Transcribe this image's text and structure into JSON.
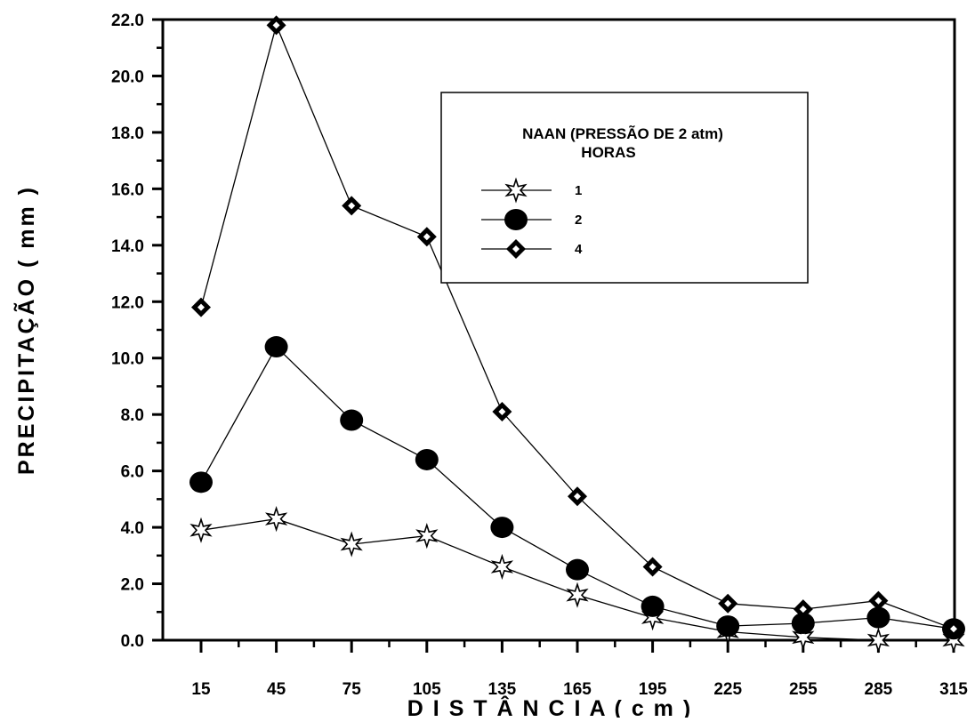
{
  "chart_data": {
    "type": "line",
    "xlabel": "D I S T Â N C I A  ( c m )",
    "ylabel": "PRECIPITAÇÃO ( mm )",
    "x": [
      15,
      45,
      75,
      105,
      135,
      165,
      195,
      225,
      255,
      285,
      315
    ],
    "x_tick_labels": [
      "15",
      "45",
      "75",
      "105",
      "135",
      "165",
      "195",
      "225",
      "255",
      "285",
      "315"
    ],
    "ylim": [
      0,
      22
    ],
    "y_tick_labels": [
      "0.0",
      "2.0",
      "4.0",
      "6.0",
      "8.0",
      "10.0",
      "12.0",
      "14.0",
      "16.0",
      "18.0",
      "20.0",
      "22.0"
    ],
    "legend": {
      "title_line1": "NAAN (PRESSÃO DE 2 atm)",
      "title_line2": "HORAS",
      "placement": "top-right"
    },
    "series": [
      {
        "name": "1",
        "marker": "star",
        "values": [
          3.9,
          4.3,
          3.4,
          3.7,
          2.6,
          1.6,
          0.8,
          0.3,
          0.1,
          0.0,
          0.0
        ]
      },
      {
        "name": "2",
        "marker": "circle",
        "values": [
          5.6,
          10.4,
          7.8,
          6.4,
          4.0,
          2.5,
          1.2,
          0.5,
          0.6,
          0.8,
          0.4
        ]
      },
      {
        "name": "4",
        "marker": "diamond",
        "values": [
          11.8,
          21.8,
          15.4,
          14.3,
          8.1,
          5.1,
          2.6,
          1.3,
          1.1,
          1.4,
          0.4
        ]
      }
    ]
  }
}
